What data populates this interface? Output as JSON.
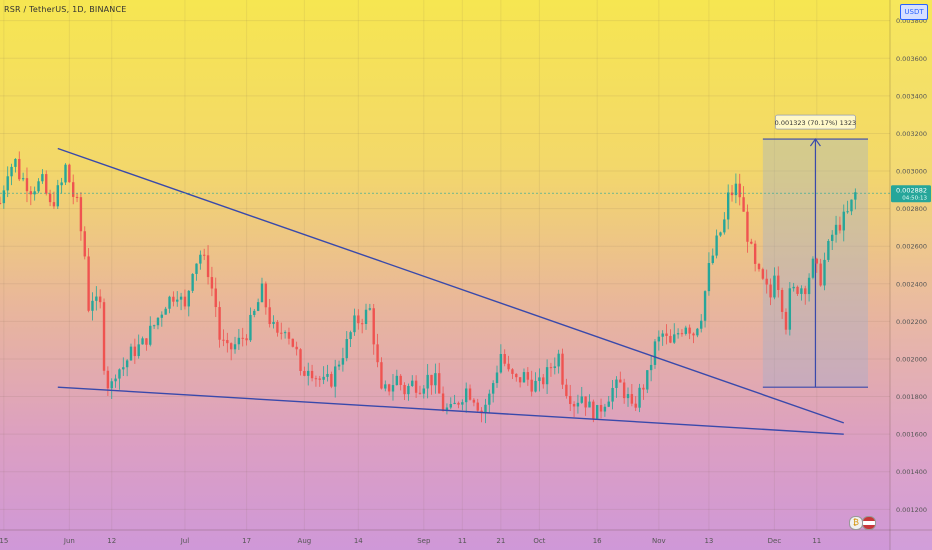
{
  "header": {
    "title": "RSR / TetherUS, 1D, BINANCE",
    "currency_button": "USDT"
  },
  "colors": {
    "up": "#26a69a",
    "down": "#ef5350",
    "trendline": "#3949ab",
    "price_tag": "#26a69a",
    "measure_box": "#9aaed0"
  },
  "chart_data": {
    "type": "candlestick",
    "title": "RSR / TetherUS, 1D, BINANCE",
    "y_axis": {
      "range": [
        0.00109,
        0.00391
      ],
      "ticks": [
        {
          "value": 0.0038,
          "label": "0.003800"
        },
        {
          "value": 0.0036,
          "label": "0.003600"
        },
        {
          "value": 0.0034,
          "label": "0.003400"
        },
        {
          "value": 0.0032,
          "label": "0.003200"
        },
        {
          "value": 0.003,
          "label": "0.003000"
        },
        {
          "value": 0.0028,
          "label": "0.002800"
        },
        {
          "value": 0.0026,
          "label": "0.002600"
        },
        {
          "value": 0.0024,
          "label": "0.002400"
        },
        {
          "value": 0.0022,
          "label": "0.002200"
        },
        {
          "value": 0.002,
          "label": "0.002000"
        },
        {
          "value": 0.0018,
          "label": "0.001800"
        },
        {
          "value": 0.0016,
          "label": "0.001600"
        },
        {
          "value": 0.0014,
          "label": "0.001400"
        },
        {
          "value": 0.0012,
          "label": "0.001200"
        }
      ]
    },
    "x_axis": {
      "range_days": [
        -17,
        214
      ],
      "ticks": [
        {
          "day": -16,
          "label": "15"
        },
        {
          "day": 1,
          "label": "Jun"
        },
        {
          "day": 12,
          "label": "12"
        },
        {
          "day": 31,
          "label": "Jul"
        },
        {
          "day": 47,
          "label": "17"
        },
        {
          "day": 62,
          "label": "Aug"
        },
        {
          "day": 76,
          "label": "14"
        },
        {
          "day": 93,
          "label": "Sep"
        },
        {
          "day": 103,
          "label": "11"
        },
        {
          "day": 113,
          "label": "21"
        },
        {
          "day": 123,
          "label": "Oct"
        },
        {
          "day": 138,
          "label": "16"
        },
        {
          "day": 154,
          "label": "Nov"
        },
        {
          "day": 167,
          "label": "13"
        },
        {
          "day": 184,
          "label": "Dec"
        },
        {
          "day": 195,
          "label": "11"
        }
      ]
    },
    "last_price": {
      "value": 0.002882,
      "label": "0.002882",
      "countdown": "04:50:13"
    },
    "anchors": [
      [
        -17,
        0.00283
      ],
      [
        -15,
        0.00301
      ],
      [
        -13,
        0.00305
      ],
      [
        -12,
        0.00298
      ],
      [
        -9,
        0.00291
      ],
      [
        -6,
        0.00294
      ],
      [
        -4,
        0.00281
      ],
      [
        -1,
        0.00293
      ],
      [
        0,
        0.00302
      ],
      [
        2,
        0.00287
      ],
      [
        3,
        0.00282
      ],
      [
        4,
        0.00268
      ],
      [
        5,
        0.00255
      ],
      [
        6,
        0.00228
      ],
      [
        7,
        0.00233
      ],
      [
        8,
        0.00229
      ],
      [
        9,
        0.00228
      ],
      [
        10,
        0.00198
      ],
      [
        11,
        0.00187
      ],
      [
        12,
        0.00186
      ],
      [
        13,
        0.00194
      ],
      [
        15,
        0.00196
      ],
      [
        17,
        0.00203
      ],
      [
        20,
        0.00208
      ],
      [
        23,
        0.00218
      ],
      [
        26,
        0.0023
      ],
      [
        29,
        0.00236
      ],
      [
        31,
        0.00226
      ],
      [
        33,
        0.00249
      ],
      [
        35,
        0.00256
      ],
      [
        37,
        0.00247
      ],
      [
        39,
        0.00228
      ],
      [
        40,
        0.00211
      ],
      [
        42,
        0.00204
      ],
      [
        45,
        0.00209
      ],
      [
        47,
        0.00214
      ],
      [
        49,
        0.00224
      ],
      [
        51,
        0.00236
      ],
      [
        53,
        0.00221
      ],
      [
        55,
        0.00211
      ],
      [
        57,
        0.00218
      ],
      [
        60,
        0.00203
      ],
      [
        61,
        0.0019
      ],
      [
        63,
        0.00197
      ],
      [
        65,
        0.00191
      ],
      [
        67,
        0.00187
      ],
      [
        69,
        0.00189
      ],
      [
        71,
        0.00199
      ],
      [
        73,
        0.00208
      ],
      [
        75,
        0.00219
      ],
      [
        77,
        0.00222
      ],
      [
        79,
        0.00226
      ],
      [
        80,
        0.00211
      ],
      [
        81,
        0.00196
      ],
      [
        82,
        0.00181
      ],
      [
        84,
        0.00185
      ],
      [
        86,
        0.0019
      ],
      [
        88,
        0.00183
      ],
      [
        90,
        0.00187
      ],
      [
        92,
        0.00186
      ],
      [
        94,
        0.0019
      ],
      [
        96,
        0.00188
      ],
      [
        98,
        0.00174
      ],
      [
        100,
        0.00172
      ],
      [
        102,
        0.00178
      ],
      [
        104,
        0.00184
      ],
      [
        106,
        0.0018
      ],
      [
        108,
        0.00172
      ],
      [
        110,
        0.0018
      ],
      [
        112,
        0.00195
      ],
      [
        113,
        0.00203
      ],
      [
        115,
        0.00192
      ],
      [
        117,
        0.00188
      ],
      [
        119,
        0.00191
      ],
      [
        121,
        0.00187
      ],
      [
        123,
        0.00186
      ],
      [
        125,
        0.00192
      ],
      [
        126,
        0.00196
      ],
      [
        128,
        0.00202
      ],
      [
        129,
        0.0019
      ],
      [
        130,
        0.00184
      ],
      [
        132,
        0.00177
      ],
      [
        134,
        0.00181
      ],
      [
        136,
        0.00174
      ],
      [
        138,
        0.00171
      ],
      [
        140,
        0.00178
      ],
      [
        142,
        0.00184
      ],
      [
        144,
        0.00186
      ],
      [
        146,
        0.00179
      ],
      [
        147,
        0.00172
      ],
      [
        149,
        0.00182
      ],
      [
        151,
        0.0019
      ],
      [
        153,
        0.00207
      ],
      [
        155,
        0.00213
      ],
      [
        157,
        0.00207
      ],
      [
        159,
        0.00214
      ],
      [
        161,
        0.00219
      ],
      [
        163,
        0.00214
      ],
      [
        165,
        0.00224
      ],
      [
        167,
        0.00248
      ],
      [
        169,
        0.00262
      ],
      [
        171,
        0.00273
      ],
      [
        172,
        0.00286
      ],
      [
        174,
        0.00291
      ],
      [
        175,
        0.00287
      ],
      [
        177,
        0.00266
      ],
      [
        179,
        0.00248
      ],
      [
        181,
        0.0024
      ],
      [
        183,
        0.00233
      ],
      [
        184,
        0.00248
      ],
      [
        185,
        0.0024
      ],
      [
        187,
        0.00219
      ],
      [
        188,
        0.00234
      ],
      [
        190,
        0.00238
      ],
      [
        192,
        0.00239
      ],
      [
        194,
        0.0025
      ],
      [
        196,
        0.00243
      ],
      [
        197,
        0.00252
      ],
      [
        199,
        0.00266
      ],
      [
        201,
        0.00272
      ],
      [
        203,
        0.00277
      ],
      [
        205,
        0.00288
      ]
    ],
    "trendlines": [
      {
        "name": "upper-trendline",
        "from": [
          -2,
          0.00312
        ],
        "to": [
          202,
          0.00166
        ]
      },
      {
        "name": "lower-trendline",
        "from": [
          -2,
          0.00185
        ],
        "to": [
          202,
          0.0016
        ]
      }
    ],
    "measure": {
      "label": "0.001323 (70.17%) 1323",
      "from_day": 181,
      "to_day": 214,
      "low": 0.00185,
      "high": 0.00317
    }
  }
}
